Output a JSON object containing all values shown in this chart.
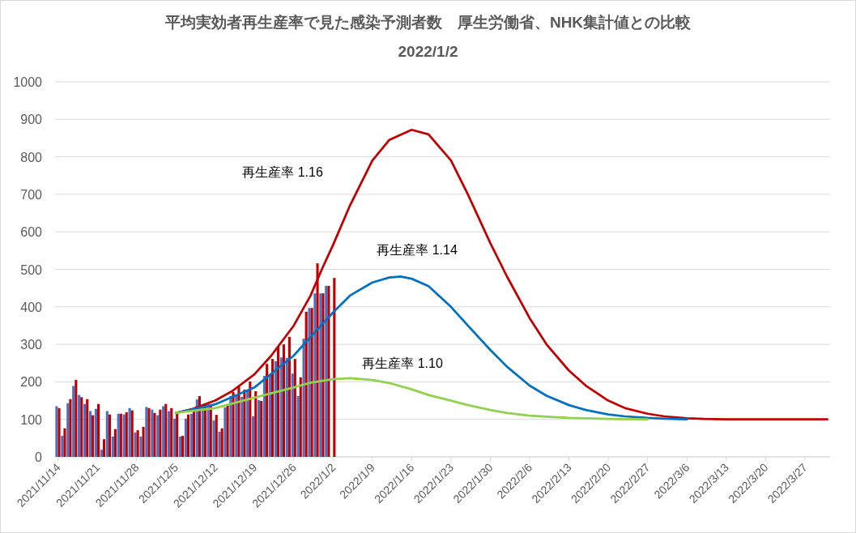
{
  "chart_data": {
    "type": "bar",
    "title": "平均実効者再生産率で見た感染予測者数　厚生労働省、NHK集計値との比較",
    "subtitle": "2022/1/2",
    "x": [
      "2021-11-14",
      "2021-11-15",
      "2021-11-16",
      "2021-11-17",
      "2021-11-18",
      "2021-11-19",
      "2021-11-20",
      "2021-11-21",
      "2021-11-22",
      "2021-11-23",
      "2021-11-24",
      "2021-11-25",
      "2021-11-26",
      "2021-11-27",
      "2021-11-28",
      "2021-11-29",
      "2021-11-30",
      "2021-12-01",
      "2021-12-02",
      "2021-12-03",
      "2021-12-04",
      "2021-12-05",
      "2021-12-06",
      "2021-12-07",
      "2021-12-08",
      "2021-12-09",
      "2021-12-10",
      "2021-12-11",
      "2021-12-12",
      "2021-12-13",
      "2021-12-14",
      "2021-12-15",
      "2021-12-16",
      "2021-12-17",
      "2021-12-18",
      "2021-12-19",
      "2021-12-20",
      "2021-12-21",
      "2021-12-22",
      "2021-12-23",
      "2021-12-24",
      "2021-12-25",
      "2021-12-26",
      "2021-12-27",
      "2021-12-28",
      "2021-12-29",
      "2021-12-30",
      "2021-12-31",
      "2022-01-01",
      "2022-01-02"
    ],
    "series": [
      {
        "color": "#4472c4",
        "values": [
          135,
          56,
          143,
          189,
          165,
          141,
          122,
          128,
          19,
          122,
          54,
          115,
          113,
          130,
          65,
          54,
          133,
          126,
          111,
          135,
          122,
          102,
          54,
          102,
          115,
          153,
          139,
          141,
          97,
          67,
          132,
          162,
          162,
          160,
          177,
          108,
          151,
          216,
          220,
          255,
          265,
          264,
          222,
          162,
          315,
          397,
          436,
          436,
          456,
          null
        ]
      },
      {
        "color": "#c00000",
        "values": [
          130,
          76,
          154,
          205,
          159,
          154,
          111,
          141,
          47,
          113,
          74,
          115,
          119,
          124,
          71,
          80,
          130,
          117,
          126,
          141,
          130,
          117,
          56,
          113,
          124,
          162,
          143,
          138,
          112,
          76,
          138,
          173,
          188,
          179,
          201,
          175,
          149,
          248,
          261,
          294,
          300,
          320,
          261,
          212,
          387,
          397,
          516,
          436,
          456,
          477
        ]
      },
      {
        "type": "line",
        "color": "#c00000",
        "x": [
          "2021-12-05",
          "2021-12-08",
          "2021-12-12",
          "2021-12-15",
          "2021-12-19",
          "2021-12-22",
          "2021-12-26",
          "2021-12-29",
          "2021-12-31",
          "2022-01-02",
          "2022-01-05",
          "2022-01-09",
          "2022-01-12",
          "2022-01-16",
          "2022-01-19",
          "2022-01-23",
          "2022-01-26",
          "2022-01-30",
          "2022-02-02",
          "2022-02-06",
          "2022-02-09",
          "2022-02-13",
          "2022-02-16",
          "2022-02-20",
          "2022-02-23",
          "2022-02-27",
          "2022-03-02",
          "2022-03-06",
          "2022-03-09",
          "2022-03-13",
          "2022-03-31"
        ],
        "values": [
          117,
          128,
          150,
          175,
          220,
          270,
          350,
          430,
          500,
          565,
          670,
          790,
          845,
          872,
          860,
          790,
          700,
          570,
          480,
          370,
          300,
          230,
          190,
          150,
          130,
          115,
          108,
          103,
          101,
          100,
          100
        ]
      },
      {
        "type": "line",
        "color": "#0070c0",
        "x": [
          "2021-12-05",
          "2021-12-12",
          "2021-12-19",
          "2021-12-26",
          "2021-12-29",
          "2022-01-02",
          "2022-01-05",
          "2022-01-09",
          "2022-01-12",
          "2022-01-14",
          "2022-01-16",
          "2022-01-19",
          "2022-01-23",
          "2022-01-26",
          "2022-01-30",
          "2022-02-02",
          "2022-02-06",
          "2022-02-09",
          "2022-02-13",
          "2022-02-16",
          "2022-02-20",
          "2022-02-23",
          "2022-02-27",
          "2022-03-02",
          "2022-03-06"
        ],
        "values": [
          117,
          140,
          185,
          270,
          320,
          385,
          430,
          465,
          478,
          481,
          475,
          455,
          400,
          350,
          285,
          240,
          190,
          163,
          138,
          125,
          113,
          108,
          104,
          102,
          100
        ]
      },
      {
        "type": "line",
        "color": "#92d050",
        "x": [
          "2021-12-05",
          "2021-12-12",
          "2021-12-19",
          "2021-12-26",
          "2021-12-29",
          "2022-01-02",
          "2022-01-05",
          "2022-01-09",
          "2022-01-12",
          "2022-01-16",
          "2022-01-19",
          "2022-01-23",
          "2022-01-26",
          "2022-01-30",
          "2022-02-02",
          "2022-02-06",
          "2022-02-09",
          "2022-02-13",
          "2022-02-16",
          "2022-02-20",
          "2022-02-27"
        ],
        "values": [
          117,
          130,
          158,
          185,
          198,
          207,
          210,
          205,
          197,
          180,
          165,
          150,
          138,
          125,
          117,
          110,
          107,
          104,
          103,
          101,
          100
        ]
      }
    ],
    "xlim": [
      "2021-11-13T12:00",
      "2022-03-31T12:00"
    ],
    "xticks": [
      {
        "value": "2021-11-14",
        "label": "2021/11/14"
      },
      {
        "value": "2021-11-21",
        "label": "2021/11/21"
      },
      {
        "value": "2021-11-28",
        "label": "2021/11/28"
      },
      {
        "value": "2021-12-05",
        "label": "2021/12/5"
      },
      {
        "value": "2021-12-12",
        "label": "2021/12/12"
      },
      {
        "value": "2021-12-19",
        "label": "2021/12/19"
      },
      {
        "value": "2021-12-26",
        "label": "2021/12/26"
      },
      {
        "value": "2022-01-02",
        "label": "2022/1/2"
      },
      {
        "value": "2022-01-09",
        "label": "2022/1/9"
      },
      {
        "value": "2022-01-16",
        "label": "2022/1/16"
      },
      {
        "value": "2022-01-23",
        "label": "2022/1/23"
      },
      {
        "value": "2022-01-30",
        "label": "2022/1/30"
      },
      {
        "value": "2022-02-06",
        "label": "2022/2/6"
      },
      {
        "value": "2022-02-13",
        "label": "2022/2/13"
      },
      {
        "value": "2022-02-20",
        "label": "2022/2/20"
      },
      {
        "value": "2022-02-27",
        "label": "2022/2/27"
      },
      {
        "value": "2022-03-06",
        "label": "2022/3/6"
      },
      {
        "value": "2022-03-13",
        "label": "2022/3/13"
      },
      {
        "value": "2022-03-20",
        "label": "2022/3/20"
      },
      {
        "value": "2022-03-27",
        "label": "2022/3/27"
      }
    ],
    "ylim": [
      0,
      1000
    ],
    "yticks": [
      0,
      100,
      200,
      300,
      400,
      500,
      600,
      700,
      800,
      900,
      1000
    ],
    "grid": "y",
    "annotations": [
      "再生産率  1.16",
      "再生産率  1.14",
      "再生産率  1.10"
    ]
  }
}
